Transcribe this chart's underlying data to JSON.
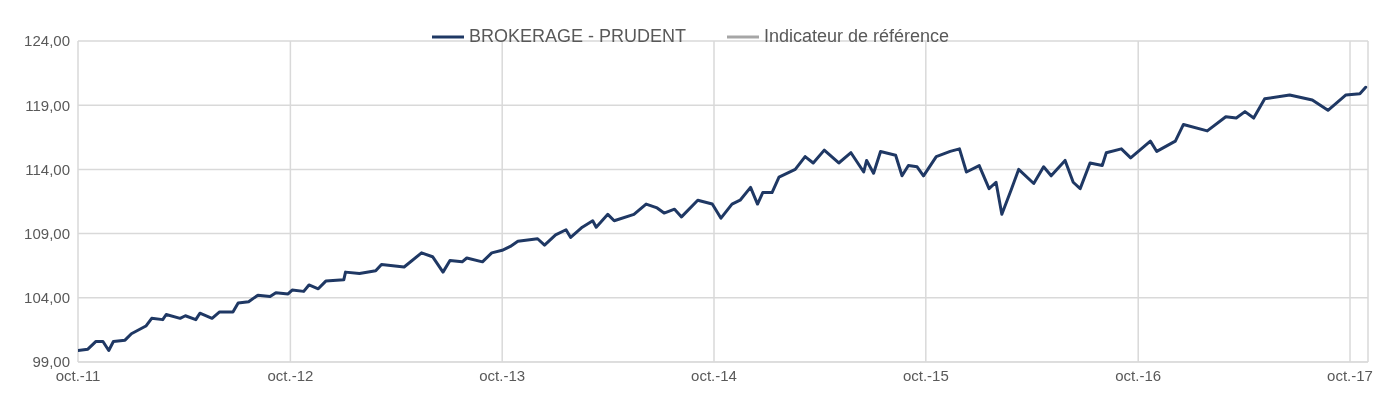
{
  "chart_data": {
    "type": "line",
    "x": [
      "2011-10-01",
      "2011-10-18",
      "2011-11-01",
      "2011-11-13",
      "2011-11-23",
      "2011-12-01",
      "2011-12-21",
      "2012-01-01",
      "2012-01-26",
      "2012-02-05",
      "2012-02-24",
      "2012-03-01",
      "2012-03-25",
      "2012-04-03",
      "2012-04-21",
      "2012-04-28",
      "2012-05-19",
      "2012-06-01",
      "2012-06-24",
      "2012-07-03",
      "2012-07-21",
      "2012-08-06",
      "2012-08-27",
      "2012-09-06",
      "2012-09-27",
      "2012-10-04",
      "2012-10-24",
      "2012-11-02",
      "2012-11-18",
      "2012-12-01",
      "2013-01-01",
      "2013-01-04",
      "2013-01-28",
      "2013-02-25",
      "2013-03-07",
      "2013-04-15",
      "2013-05-15",
      "2013-06-03",
      "2013-06-21",
      "2013-07-03",
      "2013-07-24",
      "2013-08-01",
      "2013-08-28",
      "2013-09-13",
      "2013-10-01",
      "2013-10-15",
      "2013-10-28",
      "2013-12-01",
      "2013-12-13",
      "2014-01-01",
      "2014-01-19",
      "2014-01-27",
      "2014-02-16",
      "2014-03-06",
      "2014-03-12",
      "2014-04-01",
      "2014-04-12",
      "2014-05-16",
      "2014-06-06",
      "2014-06-25",
      "2014-07-07",
      "2014-07-25",
      "2014-08-06",
      "2014-09-03",
      "2014-09-28",
      "2014-10-13",
      "2014-11-01",
      "2014-11-15",
      "2014-12-03",
      "2014-12-15",
      "2014-12-24",
      "2015-01-09",
      "2015-01-21",
      "2015-02-18",
      "2015-03-07",
      "2015-03-21",
      "2015-04-09",
      "2015-05-04",
      "2015-05-25",
      "2015-06-16",
      "2015-06-21",
      "2015-07-03",
      "2015-07-15",
      "2015-08-10",
      "2015-08-21",
      "2015-09-01",
      "2015-09-16",
      "2015-09-27",
      "2015-10-19",
      "2015-11-12",
      "2015-11-28",
      "2015-12-10",
      "2016-01-01",
      "2016-01-18",
      "2016-01-30",
      "2016-02-09",
      "2016-02-25",
      "2016-03-09",
      "2016-04-04",
      "2016-04-21",
      "2016-05-04",
      "2016-05-28",
      "2016-06-11",
      "2016-06-23",
      "2016-07-10",
      "2016-07-31",
      "2016-08-07",
      "2016-09-02",
      "2016-09-18",
      "2016-10-22",
      "2016-11-02",
      "2016-12-04",
      "2016-12-18",
      "2017-01-28",
      "2017-03-01",
      "2017-03-19",
      "2017-04-03",
      "2017-04-18",
      "2017-05-07",
      "2017-06-19",
      "2017-07-28",
      "2017-08-24",
      "2017-09-24",
      "2017-10-18",
      "2017-10-28"
    ],
    "series": [
      {
        "name": "BROKERAGE - PRUDENT",
        "color": "#1f3864",
        "values": [
          99.9,
          100.0,
          100.6,
          100.6,
          99.9,
          100.6,
          100.7,
          101.2,
          101.8,
          102.4,
          102.3,
          102.7,
          102.4,
          102.6,
          102.3,
          102.8,
          102.4,
          102.9,
          102.9,
          103.6,
          103.7,
          104.2,
          104.1,
          104.4,
          104.3,
          104.6,
          104.5,
          105.0,
          104.7,
          105.3,
          105.4,
          106.0,
          105.9,
          106.1,
          106.6,
          106.4,
          107.5,
          107.2,
          106.0,
          106.9,
          106.8,
          107.1,
          106.8,
          107.5,
          107.7,
          108.0,
          108.4,
          108.6,
          108.1,
          108.9,
          109.3,
          108.7,
          109.5,
          110.0,
          109.5,
          110.5,
          110.0,
          110.5,
          111.3,
          111.0,
          110.6,
          110.9,
          110.3,
          111.6,
          111.3,
          110.2,
          111.3,
          111.6,
          112.6,
          111.3,
          112.2,
          112.2,
          113.4,
          114.0,
          115.0,
          114.5,
          115.5,
          114.5,
          115.3,
          113.8,
          114.7,
          113.7,
          115.4,
          115.1,
          113.5,
          114.3,
          114.2,
          113.5,
          115.0,
          115.4,
          115.6,
          113.8,
          114.3,
          112.5,
          113.0,
          110.5,
          112.4,
          114.0,
          112.9,
          114.2,
          113.5,
          114.7,
          113.0,
          112.5,
          114.5,
          114.3,
          115.3,
          115.6,
          114.9,
          116.2,
          115.4,
          116.2,
          117.5,
          117.0,
          118.1,
          118.0,
          118.5,
          118.0,
          119.5,
          119.8,
          119.4,
          118.6,
          119.8,
          119.9,
          120.4
        ]
      },
      {
        "name": "Indicateur de référence",
        "color": "#a6a6a6",
        "values": [
          null,
          null,
          null,
          null,
          null,
          null,
          null,
          null,
          null,
          null,
          null,
          null,
          null,
          null,
          null,
          null,
          null,
          null,
          null,
          null,
          null,
          null,
          null,
          null,
          null,
          null,
          null,
          null,
          null,
          null,
          null,
          null,
          null,
          null,
          null,
          null,
          null,
          null,
          null,
          null,
          null,
          null,
          null,
          null,
          null,
          null,
          null,
          null,
          null,
          null,
          null,
          null,
          null,
          null,
          null,
          null,
          null,
          null,
          null,
          null,
          null,
          null,
          null,
          null,
          null,
          null,
          null,
          null,
          null,
          null,
          null,
          null,
          null,
          null,
          null,
          null,
          null,
          null,
          null,
          null,
          null,
          null,
          null,
          null,
          null,
          null,
          null,
          null,
          null,
          null,
          null,
          null,
          null,
          null,
          null,
          null,
          null,
          null,
          null,
          null,
          null,
          null,
          null,
          null,
          null,
          null,
          null,
          null,
          null,
          null,
          null,
          null,
          null,
          null,
          null,
          null,
          null,
          null,
          null,
          null,
          null,
          null,
          null,
          null,
          null
        ]
      }
    ],
    "xlim": [
      "2011-10-01",
      "2017-11-01"
    ],
    "xticks": [
      {
        "value": "2011-10-01",
        "label": "oct.-11"
      },
      {
        "value": "2012-10-01",
        "label": "oct.-12"
      },
      {
        "value": "2013-10-01",
        "label": "oct.-13"
      },
      {
        "value": "2014-10-01",
        "label": "oct.-14"
      },
      {
        "value": "2015-10-01",
        "label": "oct.-15"
      },
      {
        "value": "2016-10-01",
        "label": "oct.-16"
      },
      {
        "value": "2017-10-01",
        "label": "oct.-17"
      }
    ],
    "ylim": [
      99,
      124
    ],
    "yticks": [
      {
        "value": 99,
        "label": "99,00"
      },
      {
        "value": 104,
        "label": "104,00"
      },
      {
        "value": 109,
        "label": "109,00"
      },
      {
        "value": 114,
        "label": "114,00"
      },
      {
        "value": 119,
        "label": "119,00"
      },
      {
        "value": 124,
        "label": "124,00"
      }
    ],
    "grid": true,
    "legend": "top"
  }
}
